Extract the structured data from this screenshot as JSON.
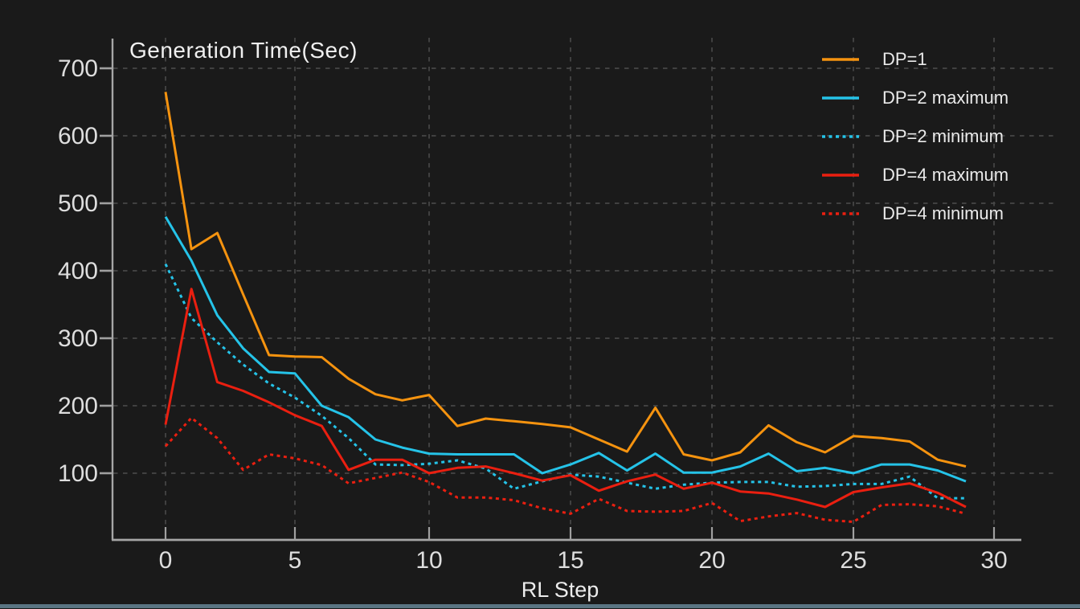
{
  "chart_data": {
    "type": "line",
    "title": "Generation Time(Sec)",
    "xlabel": "RL Step",
    "ylabel": "",
    "x_ticks": [
      0,
      5,
      10,
      15,
      20,
      25,
      30
    ],
    "y_ticks": [
      700,
      600,
      500,
      400,
      300,
      200,
      100
    ],
    "xlim": [
      0,
      31
    ],
    "ylim": [
      0,
      742
    ],
    "grid": "dashed",
    "legend_position": "top-right",
    "x": [
      0,
      1,
      2,
      3,
      4,
      5,
      6,
      7,
      8,
      9,
      10,
      11,
      12,
      13,
      14,
      15,
      16,
      17,
      18,
      19,
      20,
      21,
      22,
      23,
      24,
      25,
      26,
      27,
      28,
      29
    ],
    "series": [
      {
        "name": "DP=1",
        "color": "#f5930f",
        "style": "solid",
        "values": [
          665,
          432,
          456,
          365,
          275,
          273,
          272,
          240,
          217,
          208,
          216,
          170,
          181,
          177,
          173,
          168,
          150,
          132,
          197,
          128,
          119,
          131,
          171,
          146,
          131,
          155,
          152,
          147,
          120,
          110
        ]
      },
      {
        "name": "DP=2 maximum",
        "color": "#25c3e8",
        "style": "solid",
        "values": [
          480,
          415,
          334,
          285,
          250,
          248,
          200,
          183,
          150,
          138,
          129,
          128,
          128,
          128,
          100,
          113,
          130,
          104,
          129,
          101,
          101,
          110,
          129,
          103,
          108,
          100,
          113,
          113,
          104,
          88
        ]
      },
      {
        "name": "DP=2 minimum",
        "color": "#25c3e8",
        "style": "dotted",
        "values": [
          410,
          330,
          294,
          261,
          233,
          212,
          185,
          152,
          113,
          112,
          114,
          119,
          107,
          77,
          88,
          98,
          95,
          86,
          77,
          83,
          86,
          87,
          87,
          80,
          81,
          84,
          84,
          95,
          63,
          63
        ]
      },
      {
        "name": "DP=4 maximum",
        "color": "#ea1f10",
        "style": "solid",
        "values": [
          172,
          373,
          235,
          222,
          205,
          186,
          170,
          105,
          120,
          120,
          100,
          108,
          110,
          100,
          89,
          97,
          74,
          88,
          98,
          77,
          86,
          73,
          70,
          61,
          50,
          72,
          79,
          85,
          71,
          50
        ]
      },
      {
        "name": "DP=4 minimum",
        "color": "#ea1f10",
        "style": "dotted",
        "values": [
          140,
          182,
          152,
          105,
          128,
          122,
          112,
          85,
          93,
          101,
          87,
          64,
          64,
          60,
          48,
          40,
          62,
          44,
          43,
          44,
          56,
          29,
          36,
          41,
          31,
          28,
          53,
          54,
          51,
          40
        ]
      }
    ]
  },
  "colors": {
    "background": "#1a1a1a",
    "grid": "#474747",
    "axis": "#a6a6a6",
    "tick": "#a0a0a0",
    "tick_text": "#dedede",
    "title_text": "#f0f0f0",
    "bottom_strip": "#5a7583"
  }
}
